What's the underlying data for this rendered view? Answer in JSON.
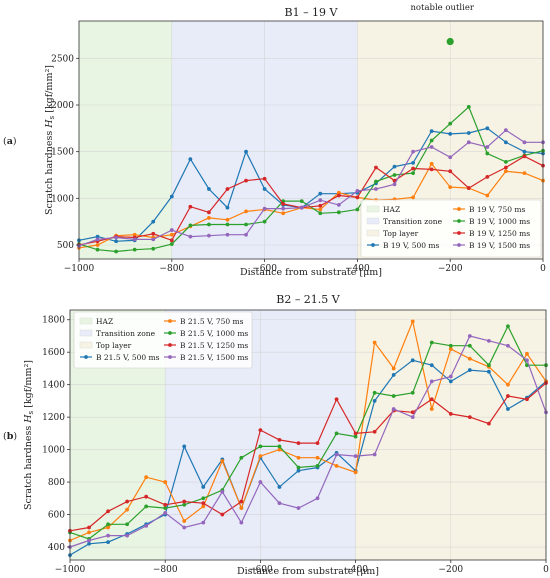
{
  "chart_data": [
    {
      "type": "line",
      "panel_label": "(a)",
      "title": "B1 – 19 V",
      "xlabel": "Distance from substrate [μm]",
      "ylabel": "Scratch hardness H_s [kgf/mm²]",
      "ylabel_parts": {
        "pre": "Scratch hardness ",
        "var": "H",
        "sub": "s",
        "post": " [kgf/mm²]"
      },
      "xlim": [
        -1000,
        0
      ],
      "ylim": [
        350,
        2900
      ],
      "xticks": [
        -1000,
        -800,
        -600,
        -400,
        -200,
        0
      ],
      "xtick_labels": [
        "−1000",
        "−800",
        "−600",
        "−400",
        "−200",
        "0"
      ],
      "yticks": [
        500,
        1000,
        1500,
        2000,
        2500
      ],
      "ytick_labels": [
        "500",
        "1000",
        "1500",
        "2000",
        "2500"
      ],
      "regions": [
        {
          "name": "HAZ",
          "from": -1000,
          "to": -800,
          "color": "#e9f5e3"
        },
        {
          "name": "Transition zone",
          "from": -800,
          "to": -400,
          "color": "#e8ecf8"
        },
        {
          "name": "Top layer",
          "from": -400,
          "to": 0,
          "color": "#f7f3e4"
        }
      ],
      "annotation": {
        "text": "notable outlier",
        "x": -200,
        "y": 2680,
        "color": "#2ca02c"
      },
      "legend_location": "lower-right",
      "legend_rows": [
        [
          "HAZ",
          "B 19 V, 750 ms"
        ],
        [
          "Transition zone",
          "B 19 V, 1000 ms"
        ],
        [
          "Top layer",
          "B 19 V, 1250 ms"
        ],
        [
          "B 19 V, 500 ms",
          "B 19 V, 1500 ms"
        ]
      ],
      "series": [
        {
          "name": "B 19 V, 500 ms",
          "color": "#1f77b4",
          "x": [
            -1000,
            -960,
            -920,
            -880,
            -840,
            -800,
            -760,
            -720,
            -680,
            -640,
            -600,
            -560,
            -520,
            -480,
            -440,
            -400,
            -360,
            -320,
            -280,
            -240,
            -200,
            -160,
            -120,
            -80,
            -40,
            0
          ],
          "y": [
            550,
            590,
            540,
            550,
            750,
            1020,
            1420,
            1100,
            900,
            1500,
            1100,
            930,
            900,
            1050,
            1050,
            1060,
            1160,
            1340,
            1380,
            1720,
            1690,
            1700,
            1750,
            1600,
            1500,
            1480
          ]
        },
        {
          "name": "B 19 V, 750 ms",
          "color": "#ff7f0e",
          "x": [
            -1000,
            -960,
            -920,
            -880,
            -840,
            -800,
            -760,
            -720,
            -680,
            -640,
            -600,
            -560,
            -520,
            -480,
            -440,
            -400,
            -360,
            -320,
            -280,
            -240,
            -200,
            -160,
            -120,
            -80,
            -40,
            0
          ],
          "y": [
            470,
            500,
            600,
            610,
            580,
            610,
            700,
            790,
            770,
            860,
            880,
            840,
            900,
            880,
            1060,
            1010,
            980,
            990,
            1010,
            1370,
            1120,
            1110,
            1030,
            1290,
            1270,
            1190
          ]
        },
        {
          "name": "B 19 V, 1000 ms",
          "color": "#2ca02c",
          "x": [
            -1000,
            -960,
            -920,
            -880,
            -840,
            -800,
            -760,
            -720,
            -680,
            -640,
            -600,
            -560,
            -520,
            -480,
            -440,
            -400,
            -360,
            -320,
            -280,
            -240,
            -200,
            -160,
            -120,
            -80,
            -40,
            0
          ],
          "y": [
            510,
            450,
            430,
            450,
            460,
            510,
            710,
            720,
            720,
            720,
            750,
            970,
            970,
            840,
            850,
            880,
            1180,
            1250,
            1270,
            1620,
            1800,
            1980,
            1480,
            1390,
            1460,
            1510
          ]
        },
        {
          "name": "B 19 V, 1250 ms",
          "color": "#d62728",
          "x": [
            -1000,
            -960,
            -920,
            -880,
            -840,
            -800,
            -760,
            -720,
            -680,
            -640,
            -600,
            -560,
            -520,
            -480,
            -440,
            -400,
            -360,
            -320,
            -280,
            -240,
            -200,
            -160,
            -120,
            -80,
            -40,
            0
          ],
          "y": [
            500,
            540,
            590,
            580,
            620,
            550,
            910,
            850,
            1100,
            1190,
            1210,
            940,
            900,
            920,
            1030,
            1010,
            1330,
            1190,
            1320,
            1310,
            1290,
            1110,
            1230,
            1330,
            1450,
            1350
          ]
        },
        {
          "name": "B 19 V, 1500 ms",
          "color": "#9467bd",
          "x": [
            -1000,
            -960,
            -920,
            -880,
            -840,
            -800,
            -760,
            -720,
            -680,
            -640,
            -600,
            -560,
            -520,
            -480,
            -440,
            -400,
            -360,
            -320,
            -280,
            -240,
            -200,
            -160,
            -120,
            -80,
            -40,
            0
          ],
          "y": [
            490,
            560,
            580,
            560,
            560,
            660,
            590,
            600,
            610,
            610,
            890,
            890,
            900,
            980,
            930,
            1080,
            1100,
            1150,
            1500,
            1550,
            1440,
            1600,
            1550,
            1730,
            1600,
            1600
          ]
        }
      ]
    },
    {
      "type": "line",
      "panel_label": "(b)",
      "title": "B2 – 21.5 V",
      "xlabel": "Distance from substrate [μm]",
      "ylabel": "Scratch hardness H_s [kgf/mm²]",
      "ylabel_parts": {
        "pre": "Scratch hardness ",
        "var": "H",
        "sub": "s",
        "post": " [kgf/mm²]"
      },
      "xlim": [
        -1000,
        0
      ],
      "ylim": [
        320,
        1860
      ],
      "xticks": [
        -1000,
        -800,
        -600,
        -400,
        -200,
        0
      ],
      "xtick_labels": [
        "−1000",
        "−800",
        "−600",
        "−400",
        "−200",
        "0"
      ],
      "yticks": [
        400,
        600,
        800,
        1000,
        1200,
        1400,
        1600,
        1800
      ],
      "ytick_labels": [
        "400",
        "600",
        "800",
        "1000",
        "1200",
        "1400",
        "1600",
        "1800"
      ],
      "regions": [
        {
          "name": "HAZ",
          "from": -1000,
          "to": -800,
          "color": "#e9f5e3"
        },
        {
          "name": "Transition zone",
          "from": -800,
          "to": -400,
          "color": "#e8ecf8"
        },
        {
          "name": "Top layer",
          "from": -400,
          "to": 0,
          "color": "#f7f3e4"
        }
      ],
      "legend_location": "upper-left",
      "legend_rows": [
        [
          "HAZ",
          "B 21.5 V, 750 ms"
        ],
        [
          "Transition zone",
          "B 21.5 V, 1000 ms"
        ],
        [
          "Top layer",
          "B 21.5 V, 1250 ms"
        ],
        [
          "B 21.5 V, 500 ms",
          "B 21.5 V, 1500 ms"
        ]
      ],
      "series": [
        {
          "name": "B 21.5 V, 500 ms",
          "color": "#1f77b4",
          "x": [
            -1000,
            -960,
            -920,
            -880,
            -840,
            -800,
            -760,
            -720,
            -680,
            -640,
            -600,
            -560,
            -520,
            -480,
            -440,
            -400,
            -360,
            -320,
            -280,
            -240,
            -200,
            -160,
            -120,
            -80,
            -40,
            0
          ],
          "y": [
            350,
            420,
            430,
            480,
            540,
            600,
            1020,
            770,
            940,
            640,
            950,
            770,
            870,
            890,
            980,
            870,
            1300,
            1460,
            1550,
            1520,
            1420,
            1490,
            1480,
            1250,
            1320,
            1420
          ]
        },
        {
          "name": "B 21.5 V, 750 ms",
          "color": "#ff7f0e",
          "x": [
            -1000,
            -960,
            -920,
            -880,
            -840,
            -800,
            -760,
            -720,
            -680,
            -640,
            -600,
            -560,
            -520,
            -480,
            -440,
            -400,
            -360,
            -320,
            -280,
            -240,
            -200,
            -160,
            -120,
            -80,
            -40,
            0
          ],
          "y": [
            440,
            490,
            520,
            630,
            830,
            800,
            560,
            650,
            930,
            640,
            960,
            1000,
            950,
            950,
            900,
            860,
            1660,
            1500,
            1790,
            1250,
            1620,
            1560,
            1510,
            1400,
            1590,
            1420
          ]
        },
        {
          "name": "B 21.5 V, 1000 ms",
          "color": "#2ca02c",
          "x": [
            -1000,
            -960,
            -920,
            -880,
            -840,
            -800,
            -760,
            -720,
            -680,
            -640,
            -600,
            -560,
            -520,
            -480,
            -440,
            -400,
            -360,
            -320,
            -280,
            -240,
            -200,
            -160,
            -120,
            -80,
            -40,
            0
          ],
          "y": [
            490,
            450,
            540,
            540,
            650,
            640,
            660,
            700,
            750,
            950,
            1020,
            1020,
            890,
            900,
            1100,
            1080,
            1350,
            1330,
            1350,
            1660,
            1640,
            1640,
            1520,
            1760,
            1520,
            1520
          ]
        },
        {
          "name": "B 21.5 V, 1250 ms",
          "color": "#d62728",
          "x": [
            -1000,
            -960,
            -920,
            -880,
            -840,
            -800,
            -760,
            -720,
            -680,
            -640,
            -600,
            -560,
            -520,
            -480,
            -440,
            -400,
            -360,
            -320,
            -280,
            -240,
            -200,
            -160,
            -120,
            -80,
            -40,
            0
          ],
          "y": [
            500,
            520,
            620,
            680,
            710,
            660,
            680,
            670,
            600,
            680,
            1120,
            1060,
            1040,
            1040,
            1310,
            1100,
            1110,
            1240,
            1230,
            1310,
            1220,
            1200,
            1160,
            1330,
            1310,
            1410
          ]
        },
        {
          "name": "B 21.5 V, 1500 ms",
          "color": "#9467bd",
          "x": [
            -1000,
            -960,
            -920,
            -880,
            -840,
            -800,
            -760,
            -720,
            -680,
            -640,
            -600,
            -560,
            -520,
            -480,
            -440,
            -400,
            -360,
            -320,
            -280,
            -240,
            -200,
            -160,
            -120,
            -80,
            -40,
            0
          ],
          "y": [
            400,
            440,
            470,
            470,
            530,
            610,
            520,
            550,
            740,
            550,
            800,
            670,
            640,
            700,
            970,
            960,
            970,
            1250,
            1200,
            1420,
            1450,
            1700,
            1670,
            1640,
            1550,
            1230
          ]
        }
      ]
    }
  ]
}
